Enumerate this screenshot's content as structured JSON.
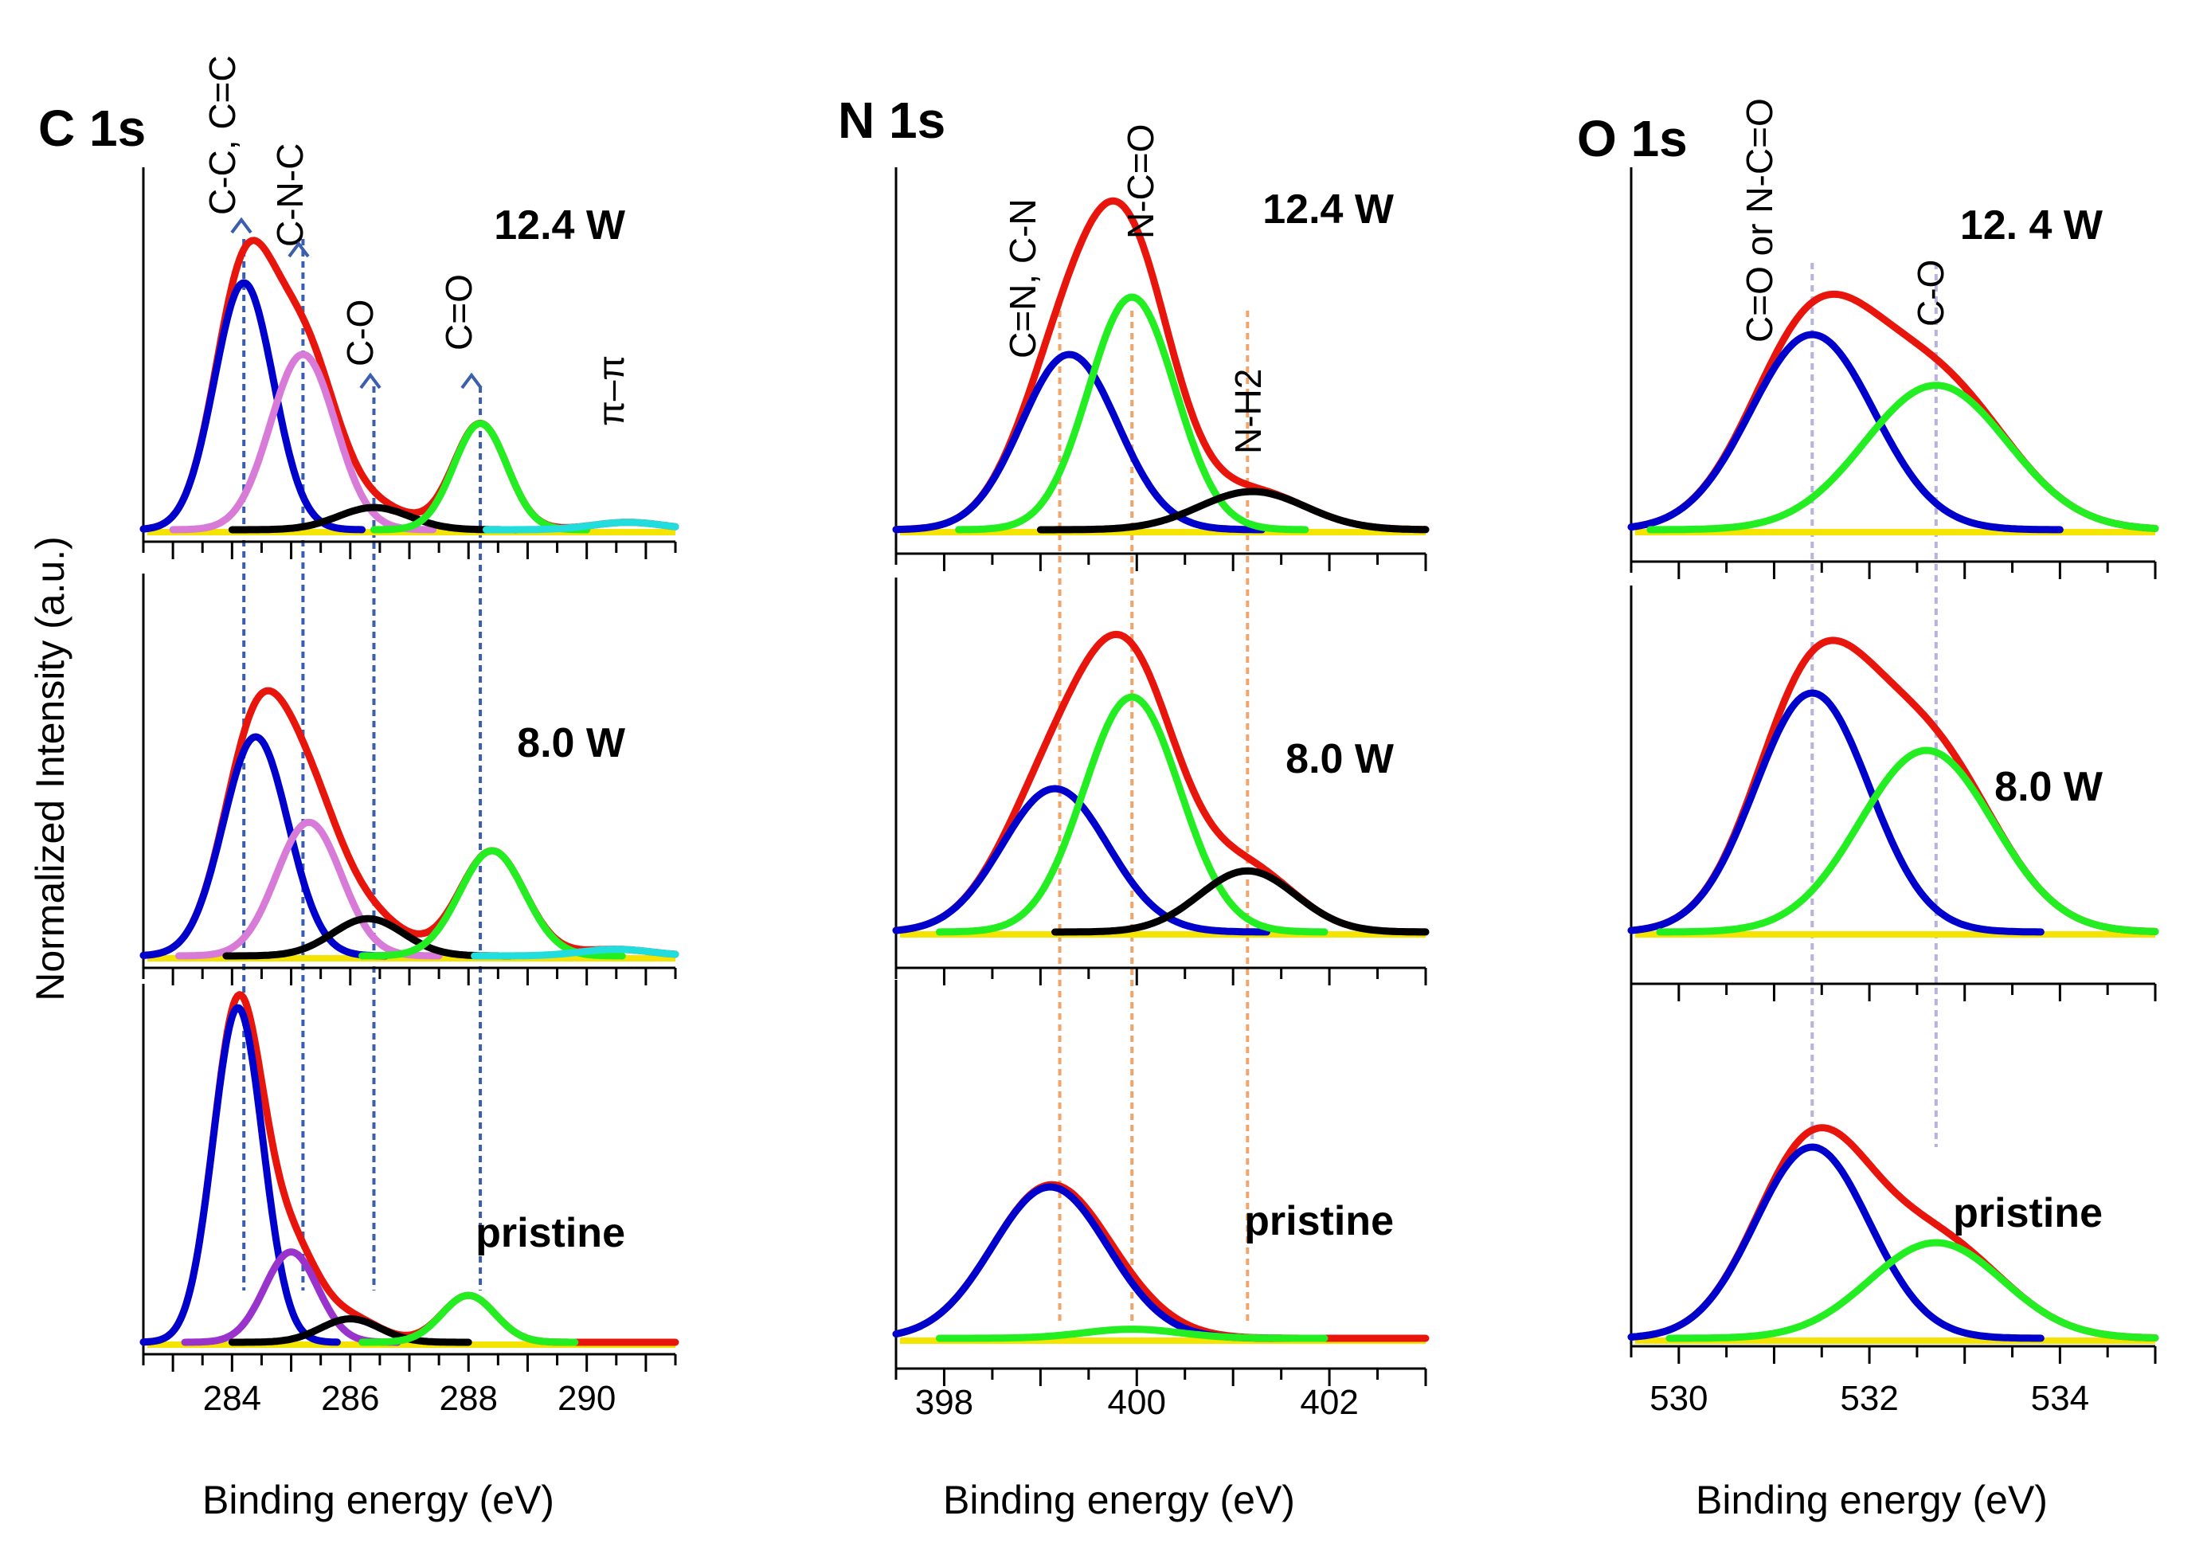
{
  "figure": {
    "y_label": "Normalized Intensity (a.u.)",
    "x_label": "Binding energy (eV)"
  },
  "chart_data": [
    {
      "type": "line",
      "title": "C 1s",
      "xlabel": "Binding energy (eV)",
      "ylabel": "Normalized Intensity (a.u.)",
      "xlim": [
        282.5,
        291.5
      ],
      "xticks": [
        "284",
        "286",
        "288",
        "290"
      ],
      "annotations": [
        "C-C, C=C",
        "C-N-C",
        "C-O",
        "C=O",
        "π–π"
      ],
      "reference_lines_eV": [
        284.2,
        285.2,
        286.4,
        288.2
      ],
      "panels": [
        {
          "label": "12.4 W",
          "series": [
            {
              "name": "C-C, C=C",
              "color": "#0000cc",
              "center": 284.2,
              "sigma": 0.5,
              "height": 1.0
            },
            {
              "name": "C-N-C",
              "color": "#d87ad8",
              "center": 285.2,
              "sigma": 0.55,
              "height": 0.71
            },
            {
              "name": "C-O",
              "color": "#000000",
              "center": 286.4,
              "sigma": 0.6,
              "height": 0.09
            },
            {
              "name": "C=O",
              "color": "#22ee22",
              "center": 288.2,
              "sigma": 0.45,
              "height": 0.43
            },
            {
              "name": "π–π",
              "color": "#22dddd",
              "center": 290.7,
              "sigma": 0.6,
              "height": 0.03
            }
          ]
        },
        {
          "label": "8.0  W",
          "series": [
            {
              "name": "C-C, C=C",
              "color": "#0000cc",
              "center": 284.4,
              "sigma": 0.55,
              "height": 1.0
            },
            {
              "name": "C-N-C",
              "color": "#d87ad8",
              "center": 285.3,
              "sigma": 0.55,
              "height": 0.61
            },
            {
              "name": "C-O",
              "color": "#000000",
              "center": 286.3,
              "sigma": 0.6,
              "height": 0.17
            },
            {
              "name": "C=O",
              "color": "#22ee22",
              "center": 288.4,
              "sigma": 0.55,
              "height": 0.48
            },
            {
              "name": "π–π",
              "color": "#22dddd",
              "center": 290.5,
              "sigma": 0.6,
              "height": 0.03
            }
          ]
        },
        {
          "label": "pristine",
          "series": [
            {
              "name": "C-C, C=C",
              "color": "#0000cc",
              "center": 284.1,
              "sigma": 0.42,
              "height": 1.0
            },
            {
              "name": "C-N-C",
              "color": "#9933cc",
              "center": 285.0,
              "sigma": 0.45,
              "height": 0.27
            },
            {
              "name": "C-O",
              "color": "#000000",
              "center": 286.0,
              "sigma": 0.5,
              "height": 0.07
            },
            {
              "name": "C=O",
              "color": "#22ee22",
              "center": 288.0,
              "sigma": 0.45,
              "height": 0.14
            }
          ]
        }
      ]
    },
    {
      "type": "line",
      "title": "N 1s",
      "xlabel": "Binding energy (eV)",
      "xlim": [
        397.5,
        403.0
      ],
      "xticks": [
        "398",
        "400",
        "402"
      ],
      "annotations": [
        "C=N, C-N",
        "N-C=O",
        "N-H2"
      ],
      "reference_lines_eV": [
        399.2,
        399.95,
        401.15
      ],
      "panels": [
        {
          "label": "12.4 W",
          "series": [
            {
              "name": "C=N, C-N",
              "color": "#0000cc",
              "center": 399.3,
              "sigma": 0.5,
              "height": 0.55
            },
            {
              "name": "N-C=O",
              "color": "#22ee22",
              "center": 399.95,
              "sigma": 0.45,
              "height": 0.73
            },
            {
              "name": "N-H2",
              "color": "#000000",
              "center": 401.2,
              "sigma": 0.55,
              "height": 0.12
            }
          ]
        },
        {
          "label": "8.0  W",
          "series": [
            {
              "name": "C=N, C-N",
              "color": "#0000cc",
              "center": 399.15,
              "sigma": 0.55,
              "height": 0.61
            },
            {
              "name": "N-C=O",
              "color": "#22ee22",
              "center": 399.95,
              "sigma": 0.5,
              "height": 1.0
            },
            {
              "name": "N-H2",
              "color": "#000000",
              "center": 401.15,
              "sigma": 0.5,
              "height": 0.26
            }
          ]
        },
        {
          "label": "pristine",
          "series": [
            {
              "name": "C=N, C-N",
              "color": "#0000cc",
              "center": 399.1,
              "sigma": 0.6,
              "height": 1.0
            },
            {
              "name": "N-C=O",
              "color": "#22ee22",
              "center": 399.95,
              "sigma": 0.5,
              "height": 0.06
            }
          ]
        }
      ]
    },
    {
      "type": "line",
      "title": "O 1s",
      "xlabel": "Binding energy (eV)",
      "xlim": [
        529.5,
        535.0
      ],
      "xticks": [
        "530",
        "532",
        "534"
      ],
      "annotations": [
        "C=O or N-C=O",
        "C-O"
      ],
      "reference_lines_eV": [
        531.4,
        532.7
      ],
      "panels": [
        {
          "label": "12. 4 W",
          "series": [
            {
              "name": "C=O or N-C=O",
              "color": "#0000cc",
              "center": 531.4,
              "sigma": 0.65,
              "height": 1.0
            },
            {
              "name": "C-O",
              "color": "#22ee22",
              "center": 532.7,
              "sigma": 0.75,
              "height": 0.74
            }
          ]
        },
        {
          "label": "8.0  W",
          "series": [
            {
              "name": "C=O or N-C=O",
              "color": "#0000cc",
              "center": 531.4,
              "sigma": 0.6,
              "height": 1.0
            },
            {
              "name": "C-O",
              "color": "#22ee22",
              "center": 532.6,
              "sigma": 0.7,
              "height": 0.76
            }
          ]
        },
        {
          "label": "pristine",
          "series": [
            {
              "name": "C=O or N-C=O",
              "color": "#0000cc",
              "center": 531.4,
              "sigma": 0.6,
              "height": 1.0
            },
            {
              "name": "C-O",
              "color": "#22ee22",
              "center": 532.7,
              "sigma": 0.7,
              "height": 0.5
            }
          ]
        }
      ]
    }
  ]
}
